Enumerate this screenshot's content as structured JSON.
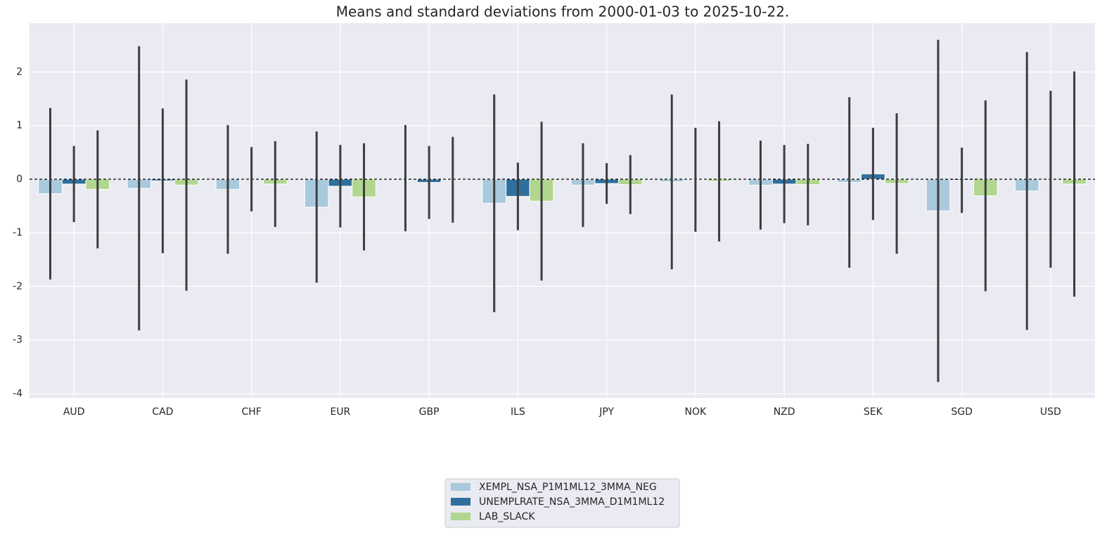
{
  "chart_data": {
    "type": "bar",
    "title": "Means and standard deviations from 2000-01-03 to 2025-10-22.",
    "categories": [
      "AUD",
      "CAD",
      "CHF",
      "EUR",
      "GBP",
      "ILS",
      "JPY",
      "NOK",
      "NZD",
      "SEK",
      "SGD",
      "USD"
    ],
    "series": [
      {
        "name": "XEMPL_NSA_P1M1ML12_3MMA_NEG",
        "color": "#a9c9dd",
        "values": [
          -0.27,
          -0.17,
          -0.19,
          -0.52,
          0.02,
          -0.45,
          -0.11,
          -0.05,
          -0.11,
          -0.06,
          -0.59,
          -0.22
        ],
        "errors": [
          1.6,
          2.65,
          1.2,
          1.41,
          0.99,
          2.03,
          0.78,
          1.63,
          0.83,
          1.59,
          3.19,
          2.59
        ]
      },
      {
        "name": "UNEMPLRATE_NSA_3MMA_D1M1ML12",
        "color": "#2f6f9c",
        "values": [
          -0.09,
          -0.03,
          0.0,
          -0.13,
          -0.06,
          -0.32,
          -0.08,
          -0.01,
          -0.09,
          0.1,
          -0.02,
          0.0
        ],
        "errors": [
          0.71,
          1.35,
          0.6,
          0.77,
          0.68,
          0.63,
          0.38,
          0.97,
          0.73,
          0.86,
          0.61,
          1.65
        ]
      },
      {
        "name": "LAB_SLACK",
        "color": "#b1d690",
        "values": [
          -0.19,
          -0.11,
          -0.09,
          -0.33,
          -0.01,
          -0.41,
          -0.1,
          -0.04,
          -0.1,
          -0.08,
          -0.31,
          -0.09
        ],
        "errors": [
          1.1,
          1.97,
          0.8,
          1.0,
          0.8,
          1.48,
          0.55,
          1.12,
          0.76,
          1.31,
          1.78,
          2.1
        ]
      }
    ],
    "ylim": [
      -4.08,
      2.91
    ],
    "yticks": [
      -4,
      -3,
      -2,
      -1,
      0,
      1,
      2
    ],
    "grid": true
  }
}
